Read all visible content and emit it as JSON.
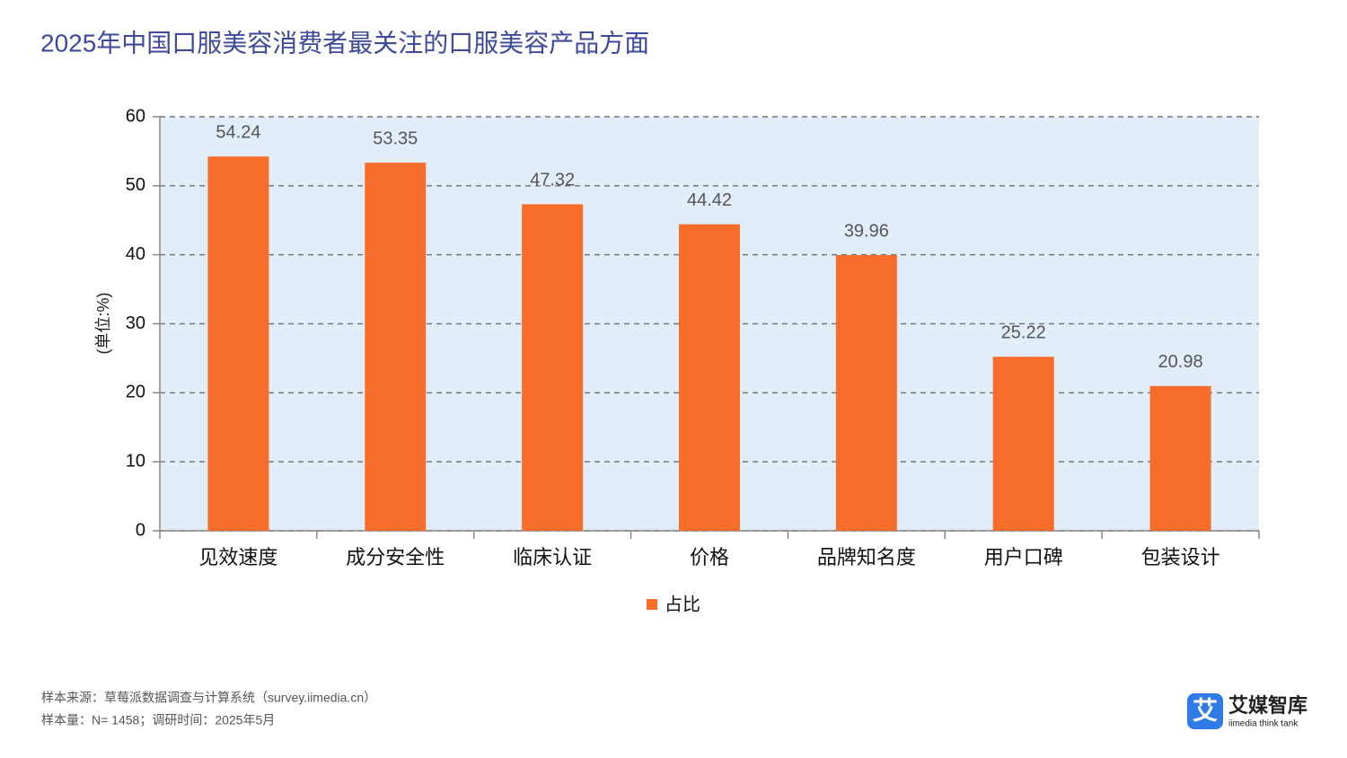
{
  "chart_data": {
    "type": "bar",
    "title": "2025年中国口服美容消费者最关注的口服美容产品方面",
    "y_label": "(单位:%)",
    "categories": [
      "见效速度",
      "成分安全性",
      "临床认证",
      "价格",
      "品牌知名度",
      "用户口碑",
      "包装设计"
    ],
    "series": [
      {
        "name": "占比",
        "color": "#f96d2a",
        "values": [
          54.24,
          53.35,
          47.32,
          44.42,
          39.96,
          25.22,
          20.98
        ]
      }
    ],
    "ylim": [
      0,
      60
    ],
    "yticks": [
      0,
      10,
      20,
      30,
      40,
      50,
      60
    ],
    "grid": true,
    "legend": "bottom"
  },
  "footer": {
    "source": "样本来源：草莓派数据调查与计算系统（survey.iimedia.cn）",
    "sample": "样本量：N= 1458；调研时间：2025年5月"
  },
  "logo": {
    "icon": "艾",
    "name": "艾媒智库",
    "tagline": "iimedia think tank"
  }
}
